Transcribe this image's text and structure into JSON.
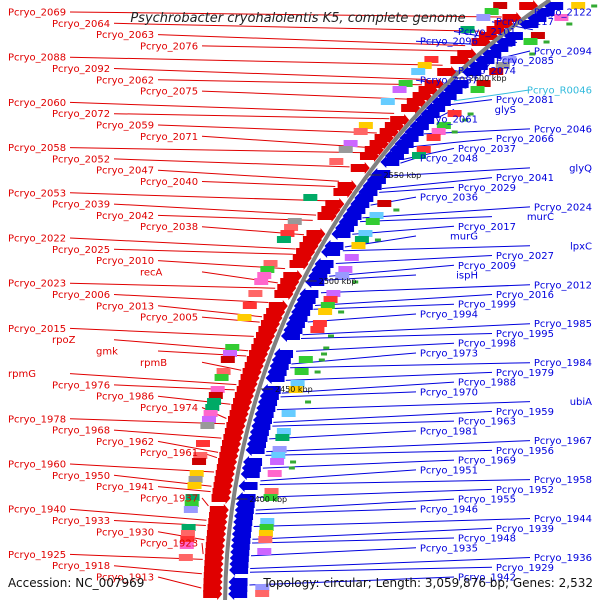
{
  "title": "Psychrobacter cryohalolentis K5, complete genome",
  "accession_text": "Accession: NC_007969",
  "summary_text": "Topology: circular; Length: 3,059,876 bp; Genes: 2,532",
  "colors": {
    "forward": "#e00000",
    "reverse": "#0000dd",
    "rna": "#33bbdd",
    "backbone": "#808080"
  },
  "kbp_markers": [
    "2600 kbp",
    "2550 kbp",
    "2500 kbp",
    "2450 kbp",
    "2400 kbp"
  ],
  "left_labels": [
    "Pcryo_2069",
    "Pcryo_2064",
    "Pcryo_2063",
    "Pcryo_2076",
    "Pcryo_2088",
    "Pcryo_2092",
    "Pcryo_2062",
    "Pcryo_2075",
    "Pcryo_2060",
    "Pcryo_2072",
    "Pcryo_2059",
    "Pcryo_2071",
    "Pcryo_2058",
    "Pcryo_2052",
    "Pcryo_2047",
    "Pcryo_2040",
    "Pcryo_2053",
    "Pcryo_2039",
    "Pcryo_2042",
    "Pcryo_2038",
    "Pcryo_2022",
    "Pcryo_2025",
    "Pcryo_2010",
    "recA",
    "Pcryo_2023",
    "Pcryo_2006",
    "Pcryo_2013",
    "Pcryo_2005",
    "Pcryo_2015",
    "rpoZ",
    "gmk",
    "rpmB",
    "rpmG",
    "Pcryo_1976",
    "Pcryo_1986",
    "Pcryo_1974",
    "Pcryo_1978",
    "Pcryo_1968",
    "Pcryo_1962",
    "Pcryo_1961",
    "Pcryo_1960",
    "Pcryo_1950",
    "Pcryo_1941",
    "Pcryo_1937",
    "Pcryo_1940",
    "Pcryo_1933",
    "Pcryo_1930",
    "Pcryo_1923",
    "Pcryo_1925",
    "Pcryo_1918",
    "Pcryo_1913"
  ],
  "right_labels": [
    "Pcryo_2122",
    "Pcryo_2117",
    "Pcryo_2101",
    "Pcryo_2096",
    "Pcryo_2094",
    "Pcryo_2085",
    "Pcryo_2074",
    "Pcryo_2087",
    "Pcryo_R0046",
    "Pcryo_2081",
    "glyS",
    "Pcryo_2061",
    "Pcryo_2046",
    "Pcryo_2066",
    "Pcryo_2037",
    "Pcryo_2048",
    "glyQ",
    "Pcryo_2041",
    "Pcryo_2029",
    "Pcryo_2036",
    "Pcryo_2024",
    "murC",
    "Pcryo_2017",
    "murG",
    "lpxC",
    "Pcryo_2027",
    "Pcryo_2009",
    "ispH",
    "Pcryo_2012",
    "Pcryo_2016",
    "Pcryo_1999",
    "Pcryo_1994",
    "Pcryo_1985",
    "Pcryo_1995",
    "Pcryo_1998",
    "Pcryo_1973",
    "Pcryo_1984",
    "Pcryo_1979",
    "Pcryo_1988",
    "Pcryo_1970",
    "ubiA",
    "Pcryo_1959",
    "Pcryo_1963",
    "Pcryo_1981",
    "Pcryo_1967",
    "Pcryo_1956",
    "Pcryo_1969",
    "Pcryo_1951",
    "Pcryo_1958",
    "Pcryo_1952",
    "Pcryo_1955",
    "Pcryo_1946",
    "Pcryo_1944",
    "Pcryo_1939",
    "Pcryo_1948",
    "Pcryo_1935",
    "Pcryo_1936",
    "Pcryo_1929",
    "Pcryo_1942"
  ]
}
